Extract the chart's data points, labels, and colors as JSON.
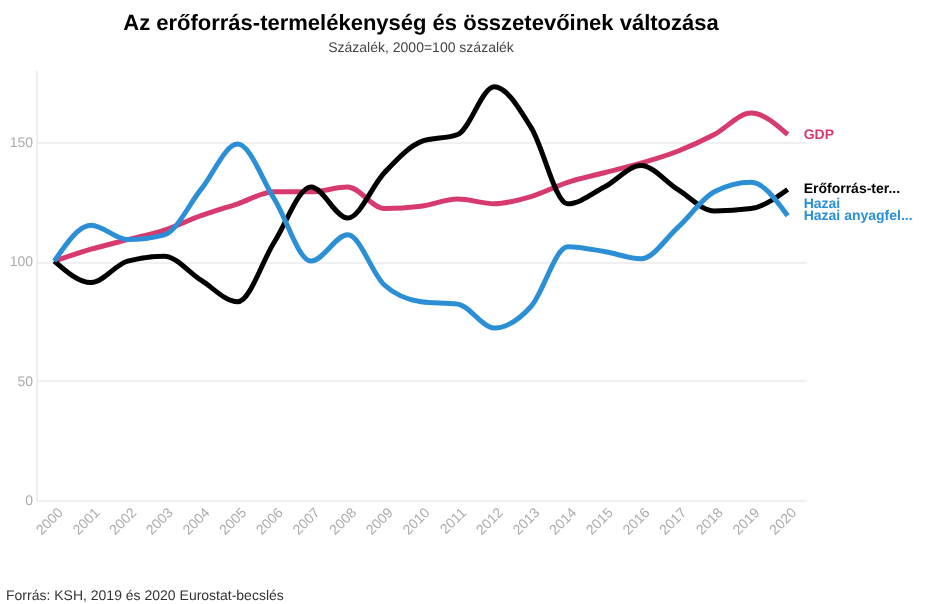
{
  "chart_data": {
    "type": "line",
    "title": "Az erőforrás-termelékenység és összetevőinek változása",
    "subtitle": "Százalék, 2000=100 százalék",
    "categories": [
      "2000",
      "2001",
      "2002",
      "2003",
      "2004",
      "2005",
      "2006",
      "2007",
      "2008",
      "2009",
      "2010",
      "2011",
      "2012",
      "2013",
      "2014",
      "2015",
      "2016",
      "2017",
      "2018",
      "2019",
      "2020"
    ],
    "series": [
      {
        "name": "GDP",
        "color": "#d63a6e",
        "values": [
          100,
          105,
          109,
          113,
          119,
          124,
          129,
          129,
          131,
          122,
          123,
          126,
          124,
          127,
          133,
          137,
          141,
          146,
          153,
          162,
          153
        ]
      },
      {
        "name": "Erőforrás-ter...",
        "color": "#000000",
        "values": [
          100,
          91,
          100,
          102,
          92,
          83,
          108,
          131,
          118,
          137,
          150,
          153,
          173,
          156,
          124,
          131,
          140,
          130,
          121,
          122,
          130
        ]
      },
      {
        "name": "Hazai anyagfel...",
        "color": "#2b8fd6",
        "values": [
          100,
          115,
          109,
          111,
          130,
          149,
          126,
          100,
          111,
          90,
          83,
          82,
          72,
          81,
          106,
          104,
          101,
          114,
          129,
          133,
          119
        ]
      }
    ],
    "ylim": [
      0,
      180
    ],
    "yticks": [
      0,
      50,
      100,
      150
    ],
    "grid": "y",
    "legend": false,
    "line_style": "solid",
    "marker": "none",
    "annotations": [
      "Hazai",
      "Forrás: KSH, 2019 és 2020 Eurostat-becslés"
    ]
  }
}
